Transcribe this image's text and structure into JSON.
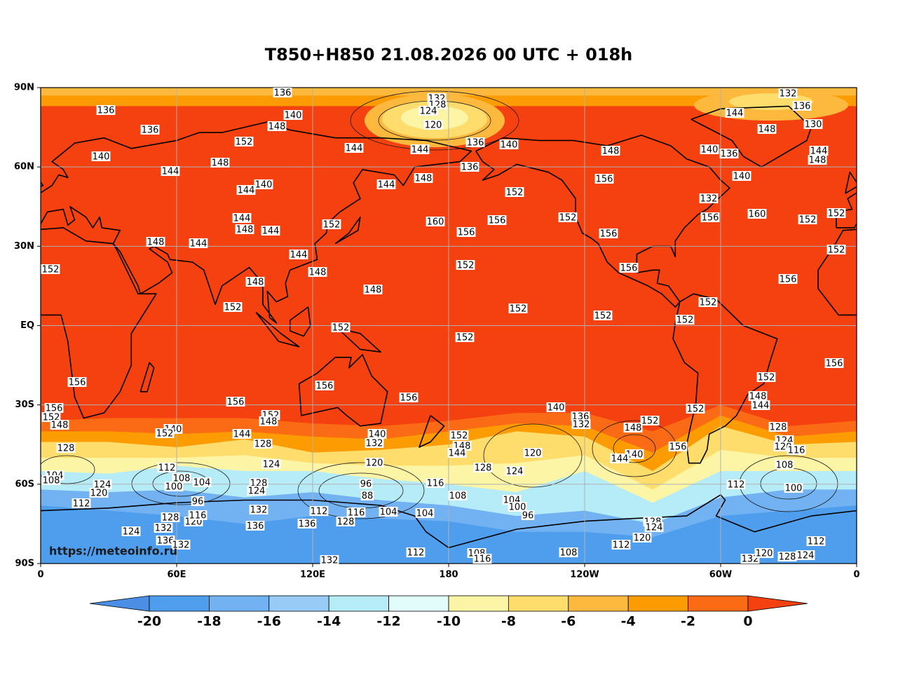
{
  "title": "T850+H850 21.08.2026 00 UTC + 018h",
  "axes": {
    "x_labels": [
      "0",
      "60E",
      "120E",
      "180",
      "120W",
      "60W",
      "0"
    ],
    "y_labels": [
      "90N",
      "60N",
      "30N",
      "EQ",
      "30S",
      "60S",
      "90S"
    ]
  },
  "contour_labels": [
    136,
    132,
    128,
    124,
    120,
    136,
    136,
    140,
    148,
    152,
    144,
    144,
    136,
    140,
    140,
    144,
    148,
    144,
    140,
    152,
    144,
    148,
    136,
    152,
    160,
    156,
    156,
    152,
    148,
    156,
    156,
    156,
    132,
    136,
    130,
    144,
    148,
    144,
    148,
    140,
    136,
    140,
    132,
    156,
    160,
    152,
    152,
    152,
    156,
    152,
    152,
    152,
    152,
    152,
    152,
    148,
    148,
    148,
    144,
    144,
    144,
    148,
    144,
    148,
    152,
    152,
    152,
    156,
    156,
    156,
    156,
    156,
    152,
    148,
    128,
    140,
    152,
    152,
    148,
    144,
    128,
    124,
    140,
    132,
    120,
    152,
    148,
    144,
    128,
    140,
    136,
    132,
    120,
    124,
    152,
    148,
    140,
    144,
    156,
    152,
    152,
    148,
    144,
    156,
    128,
    124,
    120,
    116,
    108,
    100,
    112,
    112,
    108,
    104,
    100,
    96,
    88,
    116,
    108,
    104,
    100,
    124,
    120,
    112,
    104,
    108,
    96,
    128,
    124,
    132,
    136,
    136,
    112,
    104,
    104,
    124,
    132,
    136,
    132,
    128,
    120,
    116,
    116,
    128,
    132,
    112,
    108,
    116,
    108,
    128,
    124,
    120,
    112,
    112,
    124,
    128,
    132,
    120,
    96
  ],
  "colorbar": {
    "ticks": [
      -20,
      -18,
      -16,
      -14,
      -12,
      -10,
      -8,
      -6,
      -4,
      -2,
      0
    ],
    "colors": [
      "#4a8ee6",
      "#4f9eee",
      "#72b2f3",
      "#98cbf6",
      "#b6ecf8",
      "#e2fbfb",
      "#fdf5a6",
      "#fedd6c",
      "#fdb93e",
      "#fd9b02",
      "#fb6a14",
      "#f5400f"
    ]
  },
  "watermark": "https://meteoinfo.ru"
}
